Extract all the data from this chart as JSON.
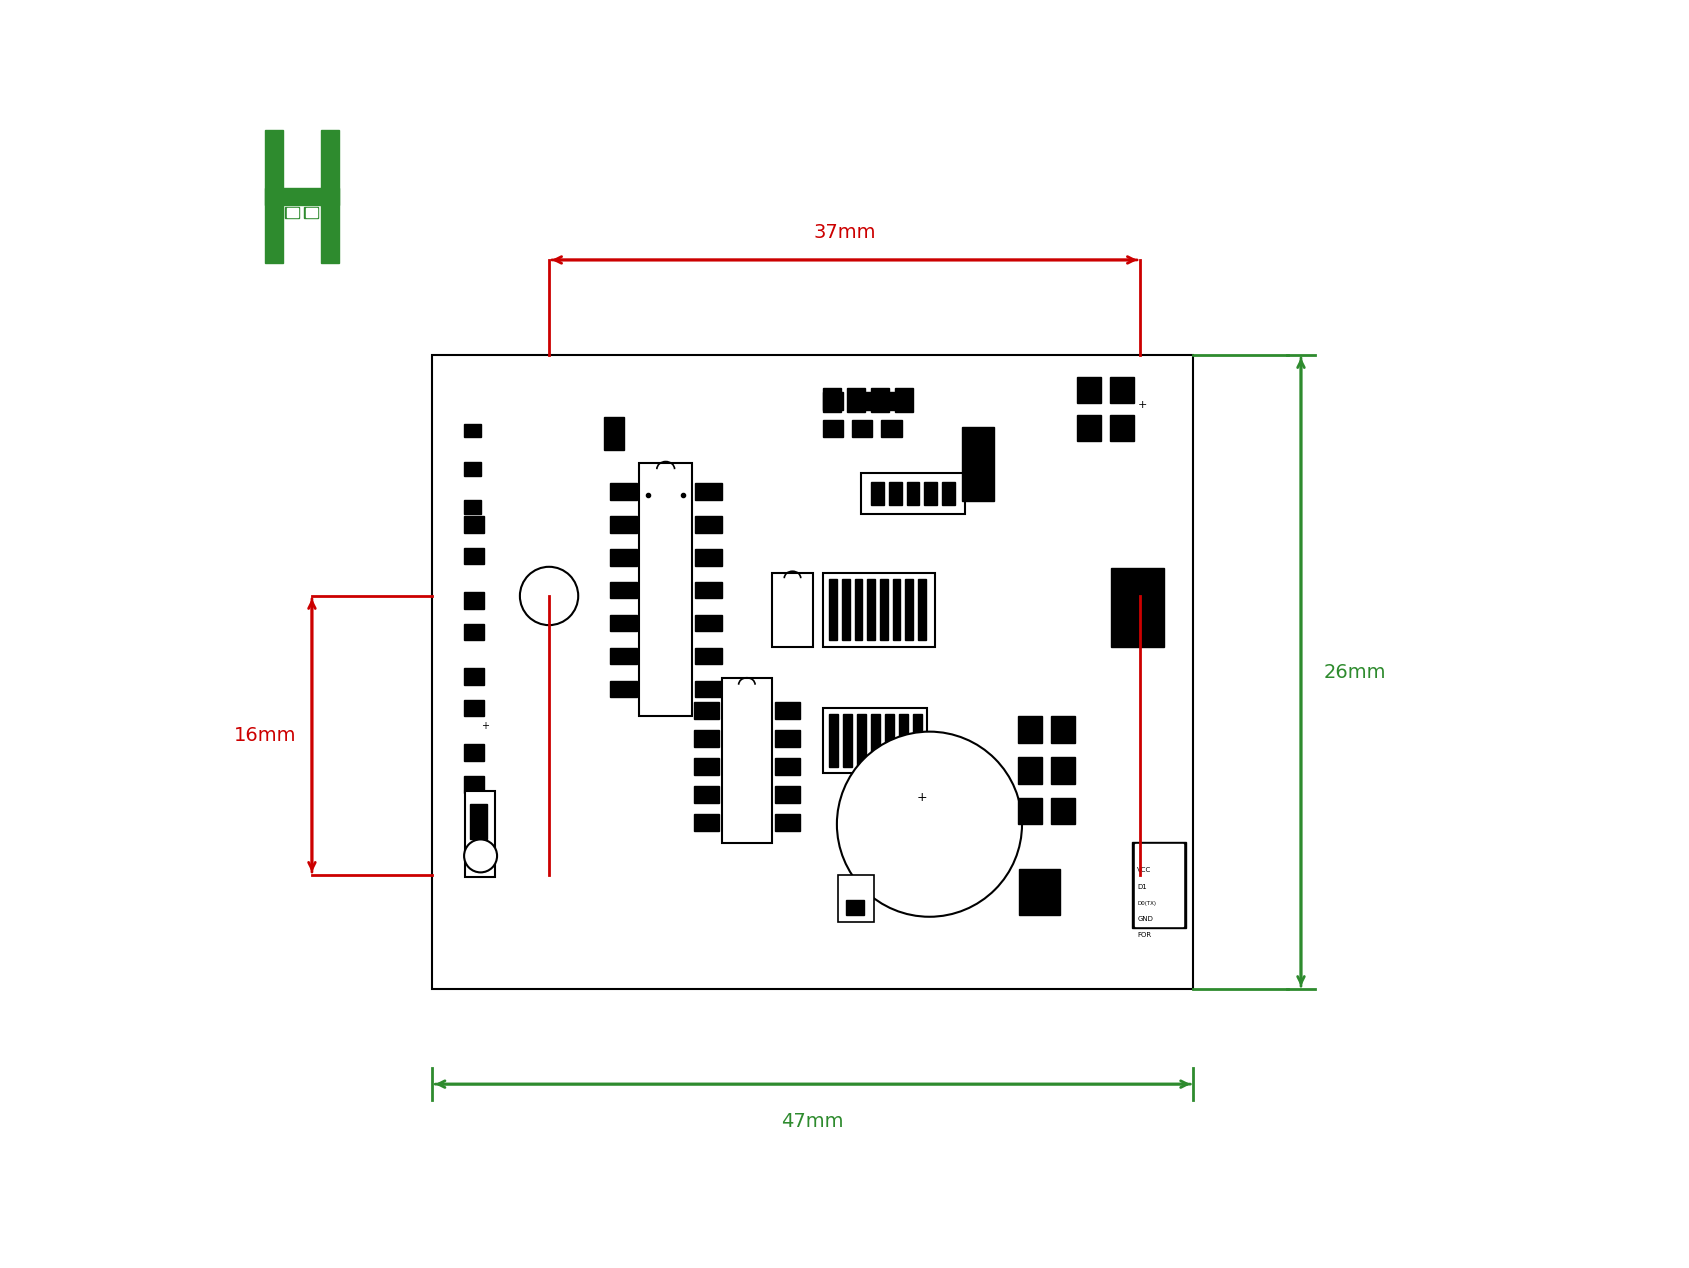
{
  "bg_color": "#ffffff",
  "green_color": "#2e8b2e",
  "red_color": "#cc0000",
  "black_color": "#000000",
  "dim_37_label": "37mm",
  "dim_47_label": "47mm",
  "dim_16_label": "16mm",
  "dim_26_label": "26mm"
}
